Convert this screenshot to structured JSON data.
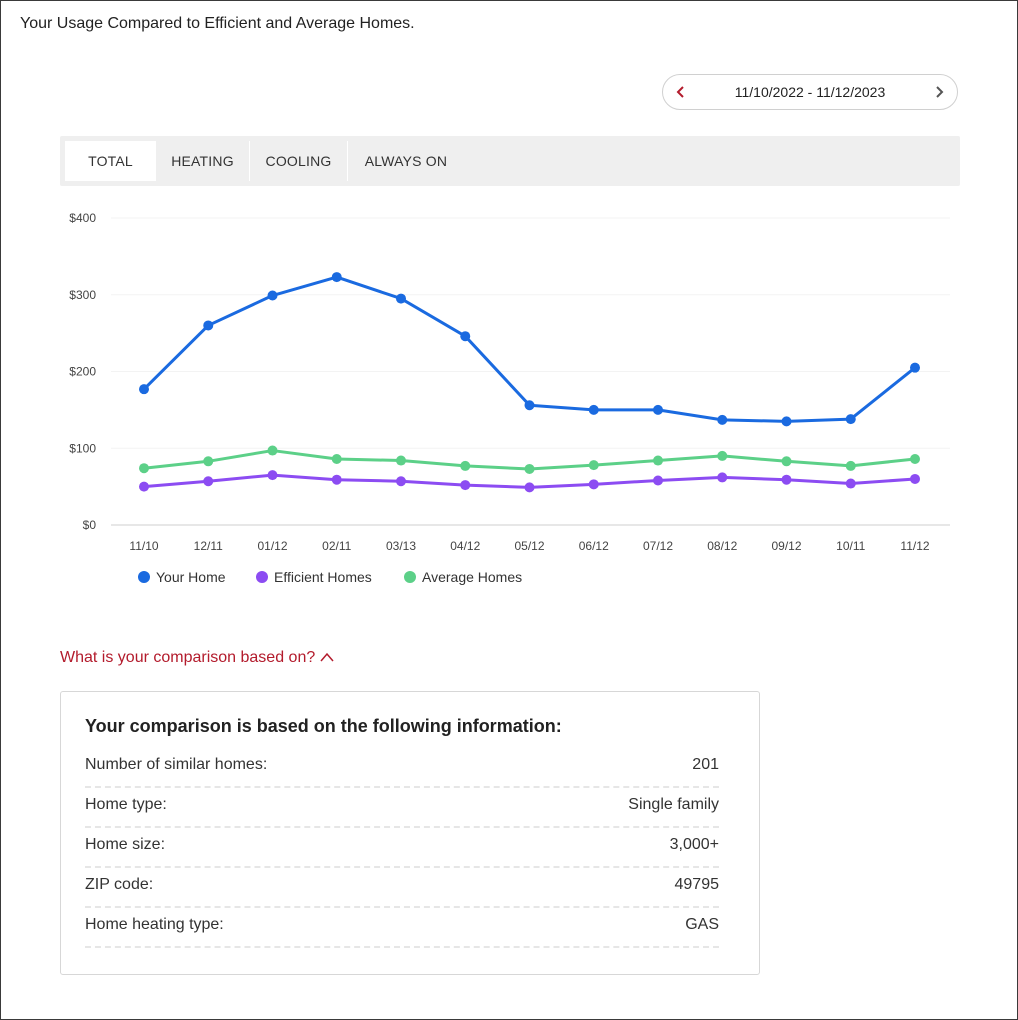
{
  "page_title": "Your Usage Compared to Efficient and Average Homes.",
  "date_range": "11/10/2022 - 11/12/2023",
  "tabs": [
    {
      "label": "TOTAL",
      "active": true
    },
    {
      "label": "HEATING",
      "active": false
    },
    {
      "label": "COOLING",
      "active": false
    },
    {
      "label": "ALWAYS ON",
      "active": false
    }
  ],
  "colors": {
    "your_home": "#1a6ae0",
    "efficient": "#8c4cf2",
    "average": "#5cd088",
    "accent_red": "#b31b2c"
  },
  "chart_data": {
    "type": "line",
    "categories": [
      "11/10",
      "12/11",
      "01/12",
      "02/11",
      "03/13",
      "04/12",
      "05/12",
      "06/12",
      "07/12",
      "08/12",
      "09/12",
      "10/11",
      "11/12"
    ],
    "y_ticks": [
      "$0",
      "$100",
      "$200",
      "$300",
      "$400"
    ],
    "ylim": [
      0,
      400
    ],
    "legend_position": "bottom-left",
    "series": [
      {
        "name": "Your Home",
        "values": [
          177,
          260,
          299,
          323,
          295,
          246,
          156,
          150,
          150,
          137,
          135,
          138,
          205
        ]
      },
      {
        "name": "Efficient Homes",
        "values": [
          50,
          57,
          65,
          59,
          57,
          52,
          49,
          53,
          58,
          62,
          59,
          54,
          60
        ]
      },
      {
        "name": "Average Homes",
        "values": [
          74,
          83,
          97,
          86,
          84,
          77,
          73,
          78,
          84,
          90,
          83,
          77,
          86
        ]
      }
    ]
  },
  "comparison_toggle": "What is your comparison based on?",
  "info_card": {
    "heading": "Your comparison is based on the following information:",
    "rows": [
      {
        "label": "Number of similar homes:",
        "value": "201"
      },
      {
        "label": "Home type:",
        "value": "Single family"
      },
      {
        "label": "Home size:",
        "value": "3,000+"
      },
      {
        "label": "ZIP code:",
        "value": "49795"
      },
      {
        "label": "Home heating type:",
        "value": "GAS"
      }
    ]
  }
}
